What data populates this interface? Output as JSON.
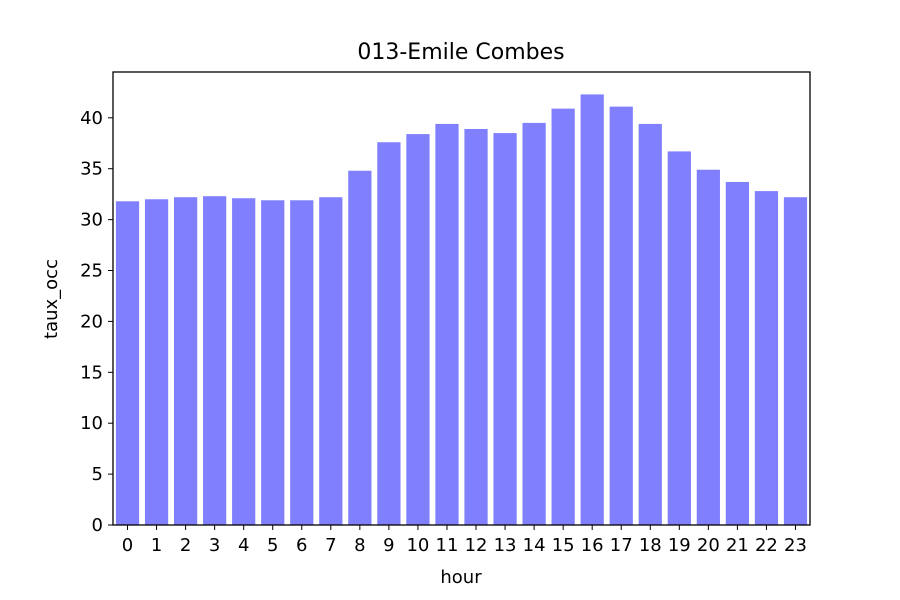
{
  "chart_data": {
    "type": "bar",
    "title": "013-Emile Combes",
    "xlabel": "hour",
    "ylabel": "taux_occ",
    "categories": [
      "0",
      "1",
      "2",
      "3",
      "4",
      "5",
      "6",
      "7",
      "8",
      "9",
      "10",
      "11",
      "12",
      "13",
      "14",
      "15",
      "16",
      "17",
      "18",
      "19",
      "20",
      "21",
      "22",
      "23"
    ],
    "values": [
      31.8,
      32.0,
      32.2,
      32.3,
      32.1,
      31.9,
      31.9,
      32.2,
      34.8,
      37.6,
      38.4,
      39.4,
      38.9,
      38.5,
      39.5,
      40.9,
      42.3,
      41.1,
      39.4,
      36.7,
      34.9,
      33.7,
      32.8,
      32.2
    ],
    "ylim": [
      0,
      44.5
    ],
    "yticks": [
      0,
      5,
      10,
      15,
      20,
      25,
      30,
      35,
      40
    ],
    "bar_color": "#8080ff",
    "grid": false,
    "legend": "none"
  }
}
